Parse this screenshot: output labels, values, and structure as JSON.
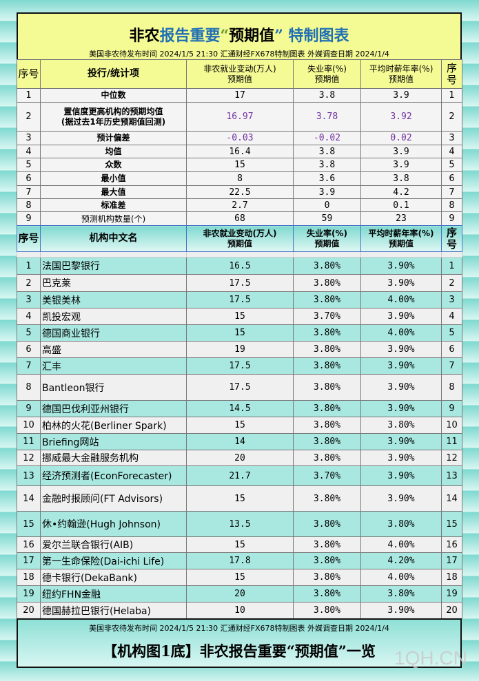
{
  "title": {
    "p1": "非农",
    "p2": "报告重要",
    "p3": "“",
    "p4": "预期值",
    "p5": "”",
    "p6": " 特制图表"
  },
  "subtitle": "美国非农待发布时间 2024/1/5 21:30  汇通财经FX678特制图表  外媒调查日期 2024/1/4",
  "stats_header": [
    "序号",
    "投行/统计项",
    "非农就业变动(万人)\n预期值",
    "失业率(%)\n预期值",
    "平均时薪年率(%)\n预期值",
    "序号"
  ],
  "stats": [
    [
      "1",
      "中位数",
      "17",
      "3.8",
      "3.9",
      "1"
    ],
    [
      "2",
      "置信度更高机构的预期均值\n(据过去1年历史预期值回测)",
      "16.97",
      "3.78",
      "3.92",
      "2"
    ],
    [
      "3",
      "预计偏差",
      "-0.03",
      "-0.02",
      "0.02",
      "3"
    ],
    [
      "4",
      "均值",
      "16.4",
      "3.8",
      "3.9",
      "4"
    ],
    [
      "5",
      "众数",
      "15",
      "3.8",
      "3.9",
      "5"
    ],
    [
      "6",
      "最小值",
      "8",
      "3.6",
      "3.8",
      "6"
    ],
    [
      "7",
      "最大值",
      "22.5",
      "3.9",
      "4.2",
      "7"
    ],
    [
      "8",
      "标准差",
      "2.7",
      "0",
      "0.1",
      "8"
    ],
    [
      "9",
      "预测机构数量(个)",
      "68",
      "59",
      "23",
      "9"
    ]
  ],
  "inst_header": [
    "序号",
    "机构中文名",
    "非农就业变动(万人)\n预期值",
    "失业率(%)\n预期值",
    "平均时薪年率(%)\n预期值",
    "序号"
  ],
  "institutions": [
    [
      "1",
      "法国巴黎银行",
      "16.5",
      "3.80%",
      "3.90%",
      "1"
    ],
    [
      "2",
      "巴克莱",
      "17.5",
      "3.80%",
      "3.90%",
      "2"
    ],
    [
      "3",
      "美银美林",
      "17.5",
      "3.80%",
      "4.00%",
      "3"
    ],
    [
      "4",
      "凯投宏观",
      "15",
      "3.70%",
      "3.90%",
      "4"
    ],
    [
      "5",
      "德国商业银行",
      "15",
      "3.80%",
      "4.00%",
      "5"
    ],
    [
      "6",
      "高盛",
      "19",
      "3.80%",
      "3.90%",
      "6"
    ],
    [
      "7",
      "汇丰",
      "17.5",
      "3.80%",
      "3.90%",
      "7"
    ],
    [
      "8",
      "Bantleon银行",
      "17.5",
      "3.80%",
      "3.90%",
      "8"
    ],
    [
      "9",
      "德国巴伐利亚州银行",
      "14.5",
      "3.80%",
      "3.90%",
      "9"
    ],
    [
      "10",
      "柏林的火花(Berliner Spark)",
      "15",
      "3.80%",
      "3.80%",
      "10"
    ],
    [
      "11",
      "Briefing网站",
      "14",
      "3.80%",
      "3.90%",
      "11"
    ],
    [
      "12",
      "挪威最大金融服务机构",
      "20",
      "3.80%",
      "3.90%",
      "12"
    ],
    [
      "13",
      "经济预测者(EconForecaster)",
      "21.7",
      "3.70%",
      "3.90%",
      "13"
    ],
    [
      "14",
      "金融时报顾问(FT Advisors)",
      "15",
      "3.80%",
      "3.90%",
      "14"
    ],
    [
      "15",
      "休•约翰逊(Hugh Johnson)",
      "13.5",
      "3.80%",
      "3.80%",
      "15"
    ],
    [
      "16",
      "爱尔兰联合银行(AIB)",
      "15",
      "3.80%",
      "4.00%",
      "16"
    ],
    [
      "17",
      "第一生命保险(Dai-ichi Life)",
      "17.8",
      "3.80%",
      "4.20%",
      "17"
    ],
    [
      "18",
      "德卡银行(DekaBank)",
      "15",
      "3.80%",
      "4.00%",
      "18"
    ],
    [
      "19",
      "纽约FHN金融",
      "20",
      "3.80%",
      "3.80%",
      "19"
    ],
    [
      "20",
      "德国赫拉巴银行(Helaba)",
      "10",
      "3.80%",
      "3.90%",
      "20"
    ]
  ],
  "footer": {
    "subtitle": "美国非农待发布时间 2024/1/5 21:30  汇通财经FX678特制图表  外媒调查日期 2024/1/4",
    "title": "【机构图1底】非农报告重要“预期值”一览"
  },
  "watermark": "1QH.CN",
  "colors": {
    "title_blue": "#1f6fb5",
    "purple": "#7030a0",
    "teal_row": "#a8e8e0",
    "yellow_header": "#f4fa94"
  }
}
